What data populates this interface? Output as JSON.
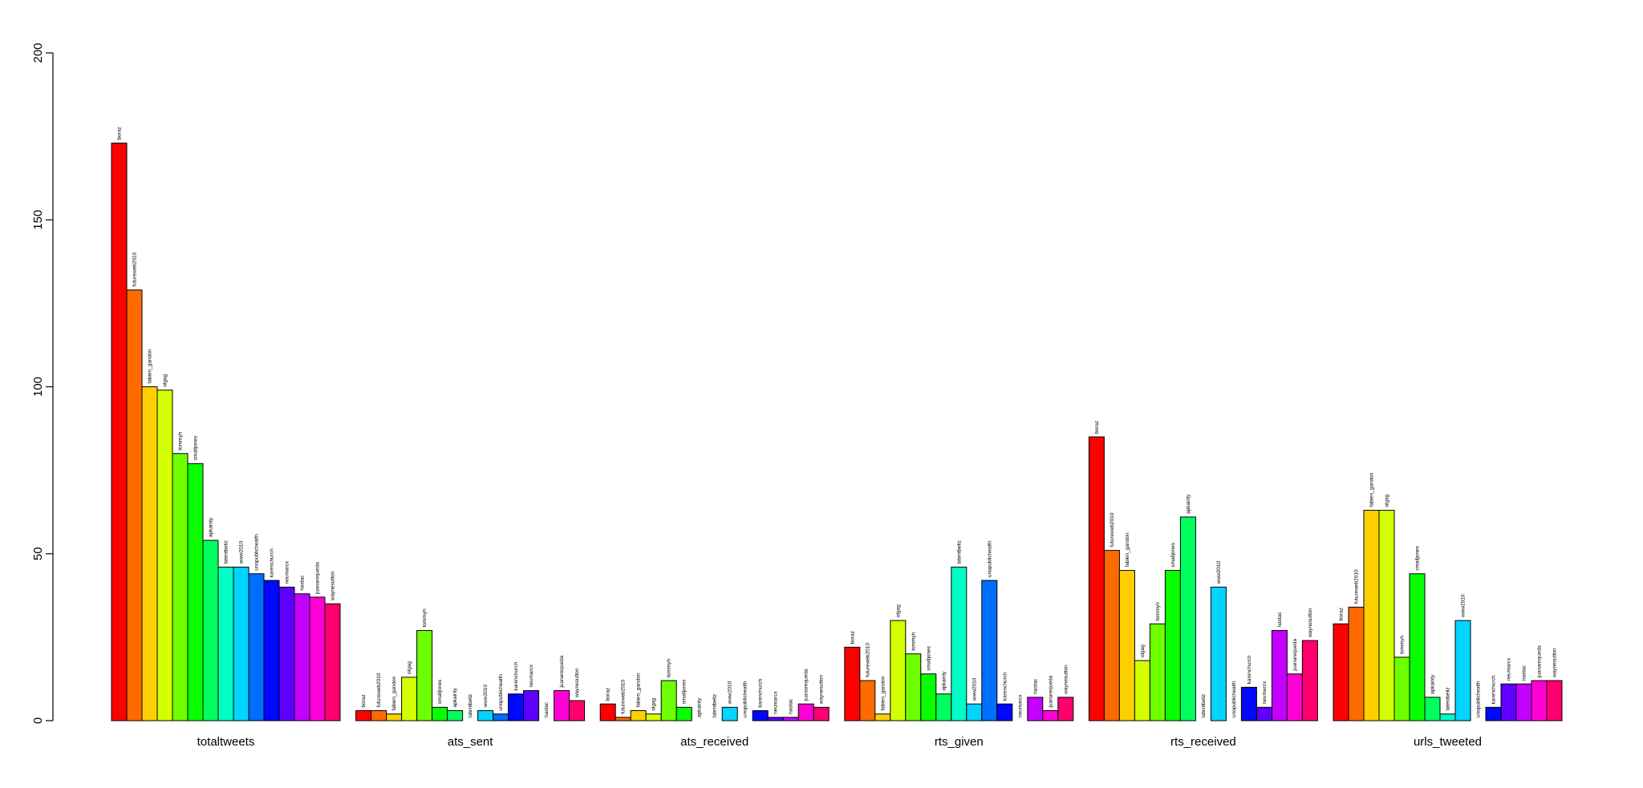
{
  "chart_data": {
    "type": "bar",
    "layout": "grouped",
    "title": "",
    "xlabel": "",
    "ylabel": "",
    "ylim": [
      0,
      200
    ],
    "y_ticks": [
      0,
      50,
      100,
      150,
      200
    ],
    "legend": "none",
    "grid": false,
    "categories": [
      "totaltweets",
      "ats_sent",
      "ats_received",
      "rts_given",
      "rts_received",
      "urls_tweeted"
    ],
    "series": [
      {
        "name": "boraz",
        "color": "#FF0000",
        "values": [
          173,
          3,
          5,
          22,
          85,
          29
        ]
      },
      {
        "name": "futureweb2010",
        "color": "#FF6A00",
        "values": [
          129,
          3,
          1,
          12,
          51,
          34
        ]
      },
      {
        "name": "fabien_gandon",
        "color": "#FFD000",
        "values": [
          100,
          2,
          3,
          2,
          45,
          63
        ]
      },
      {
        "name": "olgag",
        "color": "#D4FF00",
        "values": [
          99,
          13,
          2,
          30,
          18,
          63
        ]
      },
      {
        "name": "tommyh",
        "color": "#6EFF00",
        "values": [
          80,
          27,
          12,
          20,
          29,
          19
        ]
      },
      {
        "name": "smalljones",
        "color": "#08FF00",
        "values": [
          77,
          4,
          4,
          14,
          45,
          44
        ]
      },
      {
        "name": "apkainty",
        "color": "#00FF5E",
        "values": [
          54,
          3,
          0,
          8,
          61,
          7
        ]
      },
      {
        "name": "latentbeliz",
        "color": "#00FFC4",
        "values": [
          46,
          0,
          0,
          46,
          0,
          2
        ]
      },
      {
        "name": "www2010",
        "color": "#00D4FF",
        "values": [
          46,
          3,
          4,
          5,
          40,
          30
        ]
      },
      {
        "name": "unopublichealth",
        "color": "#006EFF",
        "values": [
          44,
          2,
          0,
          42,
          0,
          0
        ]
      },
      {
        "name": "karenchurch",
        "color": "#0008FF",
        "values": [
          42,
          8,
          3,
          5,
          10,
          4
        ]
      },
      {
        "name": "neumarcx",
        "color": "#5E00FF",
        "values": [
          40,
          9,
          1,
          0,
          4,
          11
        ]
      },
      {
        "name": "hastac",
        "color": "#C400FF",
        "values": [
          38,
          0,
          1,
          7,
          27,
          11
        ]
      },
      {
        "name": "juanarequeda",
        "color": "#FF00D4",
        "values": [
          37,
          9,
          5,
          3,
          14,
          12
        ]
      },
      {
        "name": "waynesutton",
        "color": "#FF006E",
        "values": [
          35,
          6,
          4,
          7,
          24,
          12
        ]
      }
    ]
  }
}
